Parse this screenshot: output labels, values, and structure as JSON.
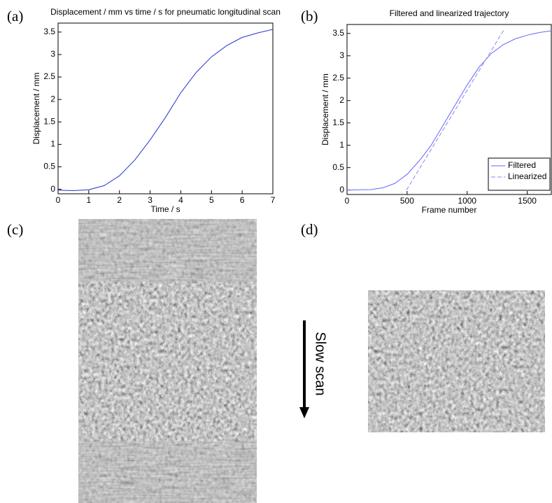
{
  "chart_data": [
    {
      "type": "line",
      "panel": "(a)",
      "title": "Displacement / mm vs time / s for pneumatic longitudinal scan",
      "x_label": "Time / s",
      "y_label": "Displacement / mm",
      "x": [
        0,
        0.5,
        1,
        1.5,
        2,
        2.5,
        3,
        3.5,
        4,
        4.5,
        5,
        5.5,
        6,
        6.5,
        7
      ],
      "values": [
        -0.02,
        -0.03,
        -0.01,
        0.08,
        0.3,
        0.65,
        1.1,
        1.6,
        2.15,
        2.6,
        2.95,
        3.2,
        3.38,
        3.48,
        3.56
      ],
      "color": "#2233cc",
      "xlim": [
        0,
        7
      ],
      "xticks": [
        0,
        1,
        2,
        3,
        4,
        5,
        6,
        7
      ],
      "ylim": [
        -0.1,
        3.7
      ],
      "yticks": [
        0,
        0.5,
        1,
        1.5,
        2,
        2.5,
        3,
        3.5
      ]
    },
    {
      "type": "line",
      "panel": "(b)",
      "title": "Filtered and linearized trajectory",
      "x_label": "Frame number",
      "y_label": "Displacement / mm",
      "series": [
        {
          "name": "Filtered",
          "color": "#6666ff",
          "linestyle": "solid",
          "x": [
            0,
            200,
            300,
            400,
            500,
            600,
            700,
            800,
            900,
            1000,
            1100,
            1200,
            1300,
            1400,
            1500,
            1600,
            1700
          ],
          "values": [
            0,
            0.01,
            0.05,
            0.15,
            0.35,
            0.65,
            1.0,
            1.45,
            1.9,
            2.35,
            2.75,
            3.05,
            3.25,
            3.38,
            3.46,
            3.52,
            3.56
          ]
        },
        {
          "name": "Linearized",
          "color": "#8888ee",
          "linestyle": "dashed",
          "x": [
            495,
            1310
          ],
          "values": [
            0,
            3.6
          ]
        }
      ],
      "legend": "lower right",
      "xlim": [
        0,
        1700
      ],
      "xticks": [
        0,
        500,
        1000,
        1500
      ],
      "ylim": [
        -0.1,
        3.7
      ],
      "yticks": [
        0,
        0.5,
        1,
        1.5,
        2,
        2.5,
        3,
        3.5
      ]
    }
  ],
  "panels": {
    "c": "(c)",
    "d": "(d)"
  },
  "arrow_label": "Slow scan"
}
